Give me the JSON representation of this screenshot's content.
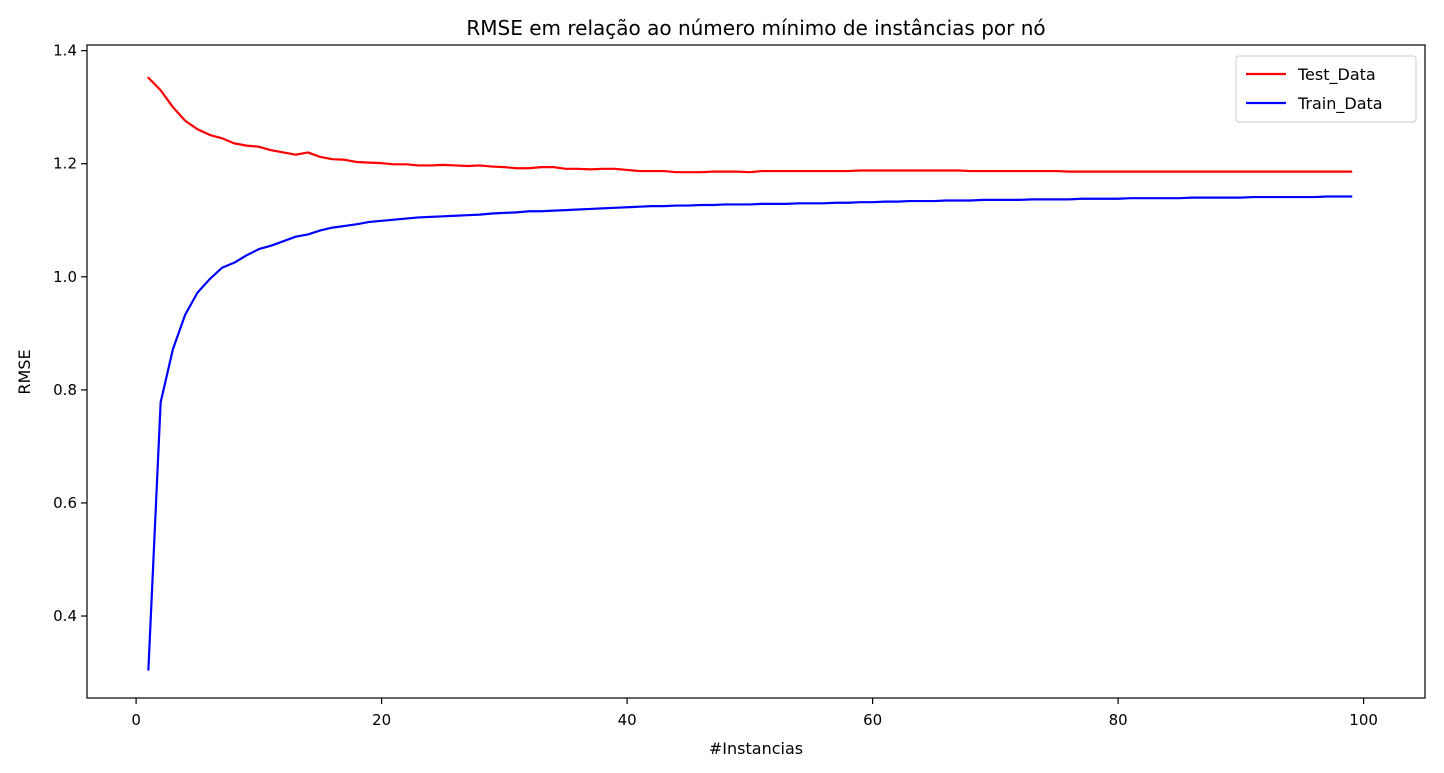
{
  "chart_data": {
    "type": "line",
    "title": "RMSE em relação ao número mínimo de instâncias por nó",
    "xlabel": "#Instancias",
    "ylabel": "RMSE",
    "xlim": [
      -4,
      105
    ],
    "ylim": [
      0.255,
      1.41
    ],
    "xticks": [
      0,
      20,
      40,
      60,
      80,
      100
    ],
    "xtick_labels": [
      "0",
      "20",
      "40",
      "60",
      "80",
      "100"
    ],
    "yticks": [
      0.4,
      0.6,
      0.8,
      1.0,
      1.2,
      1.4
    ],
    "ytick_labels": [
      "0.4",
      "0.6",
      "0.8",
      "1.0",
      "1.2",
      "1.4"
    ],
    "grid": false,
    "legend_position": "top-right",
    "series": [
      {
        "name": "Test_Data",
        "color": "#ff0000",
        "x": [
          1,
          2,
          3,
          4,
          5,
          6,
          7,
          8,
          9,
          10,
          11,
          12,
          13,
          14,
          15,
          16,
          17,
          18,
          19,
          20,
          21,
          22,
          23,
          24,
          25,
          26,
          27,
          28,
          29,
          30,
          31,
          32,
          33,
          34,
          35,
          36,
          37,
          38,
          39,
          40,
          41,
          42,
          43,
          44,
          45,
          46,
          47,
          48,
          49,
          50,
          51,
          52,
          53,
          54,
          55,
          56,
          57,
          58,
          59,
          60,
          61,
          62,
          63,
          64,
          65,
          66,
          67,
          68,
          69,
          70,
          71,
          72,
          73,
          74,
          75,
          76,
          77,
          78,
          79,
          80,
          81,
          82,
          83,
          84,
          85,
          86,
          87,
          88,
          89,
          90,
          91,
          92,
          93,
          94,
          95,
          96,
          97,
          98,
          99
        ],
        "y": [
          1.352,
          1.33,
          1.3,
          1.276,
          1.261,
          1.251,
          1.245,
          1.236,
          1.232,
          1.23,
          1.224,
          1.22,
          1.216,
          1.22,
          1.212,
          1.208,
          1.207,
          1.203,
          1.202,
          1.201,
          1.199,
          1.199,
          1.197,
          1.197,
          1.198,
          1.197,
          1.196,
          1.197,
          1.195,
          1.194,
          1.192,
          1.192,
          1.194,
          1.194,
          1.191,
          1.191,
          1.19,
          1.191,
          1.191,
          1.189,
          1.187,
          1.187,
          1.187,
          1.185,
          1.185,
          1.185,
          1.186,
          1.186,
          1.186,
          1.185,
          1.187,
          1.187,
          1.187,
          1.187,
          1.187,
          1.187,
          1.187,
          1.187,
          1.188,
          1.188,
          1.188,
          1.188,
          1.188,
          1.188,
          1.188,
          1.188,
          1.188,
          1.187,
          1.187,
          1.187,
          1.187,
          1.187,
          1.187,
          1.187,
          1.187,
          1.186,
          1.186,
          1.186,
          1.186,
          1.186,
          1.186,
          1.186,
          1.186,
          1.186,
          1.186,
          1.186,
          1.186,
          1.186,
          1.186,
          1.186,
          1.186,
          1.186,
          1.186,
          1.186,
          1.186,
          1.186,
          1.186,
          1.186,
          1.186
        ]
      },
      {
        "name": "Train_Data",
        "color": "#0000ff",
        "x": [
          1,
          2,
          3,
          4,
          5,
          6,
          7,
          8,
          9,
          10,
          11,
          12,
          13,
          14,
          15,
          16,
          17,
          18,
          19,
          20,
          21,
          22,
          23,
          24,
          25,
          26,
          27,
          28,
          29,
          30,
          31,
          32,
          33,
          34,
          35,
          36,
          37,
          38,
          39,
          40,
          41,
          42,
          43,
          44,
          45,
          46,
          47,
          48,
          49,
          50,
          51,
          52,
          53,
          54,
          55,
          56,
          57,
          58,
          59,
          60,
          61,
          62,
          63,
          64,
          65,
          66,
          67,
          68,
          69,
          70,
          71,
          72,
          73,
          74,
          75,
          76,
          77,
          78,
          79,
          80,
          81,
          82,
          83,
          84,
          85,
          86,
          87,
          88,
          89,
          90,
          91,
          92,
          93,
          94,
          95,
          96,
          97,
          98,
          99
        ],
        "y": [
          0.305,
          0.778,
          0.872,
          0.933,
          0.972,
          0.996,
          1.016,
          1.025,
          1.038,
          1.049,
          1.055,
          1.063,
          1.071,
          1.075,
          1.082,
          1.087,
          1.09,
          1.093,
          1.097,
          1.099,
          1.101,
          1.103,
          1.105,
          1.106,
          1.107,
          1.108,
          1.109,
          1.11,
          1.112,
          1.113,
          1.114,
          1.116,
          1.116,
          1.117,
          1.118,
          1.119,
          1.12,
          1.121,
          1.122,
          1.123,
          1.124,
          1.125,
          1.125,
          1.126,
          1.126,
          1.127,
          1.127,
          1.128,
          1.128,
          1.128,
          1.129,
          1.129,
          1.129,
          1.13,
          1.13,
          1.13,
          1.131,
          1.131,
          1.132,
          1.132,
          1.133,
          1.133,
          1.134,
          1.134,
          1.134,
          1.135,
          1.135,
          1.135,
          1.136,
          1.136,
          1.136,
          1.136,
          1.137,
          1.137,
          1.137,
          1.137,
          1.138,
          1.138,
          1.138,
          1.138,
          1.139,
          1.139,
          1.139,
          1.139,
          1.139,
          1.14,
          1.14,
          1.14,
          1.14,
          1.14,
          1.141,
          1.141,
          1.141,
          1.141,
          1.141,
          1.141,
          1.142,
          1.142,
          1.142
        ]
      }
    ]
  }
}
